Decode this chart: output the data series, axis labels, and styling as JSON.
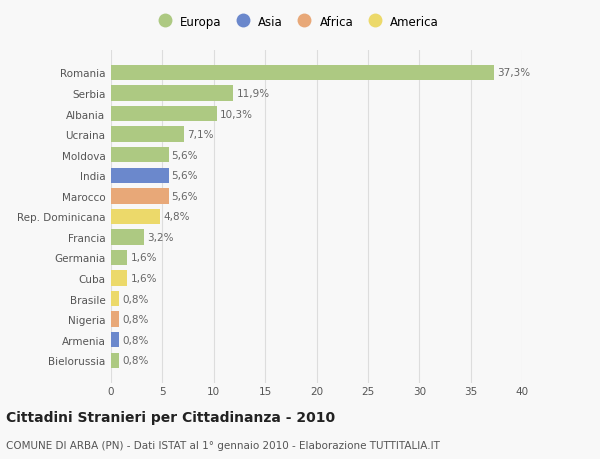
{
  "countries": [
    "Romania",
    "Serbia",
    "Albania",
    "Ucraina",
    "Moldova",
    "India",
    "Marocco",
    "Rep. Dominicana",
    "Francia",
    "Germania",
    "Cuba",
    "Brasile",
    "Nigeria",
    "Armenia",
    "Bielorussia"
  ],
  "values": [
    37.3,
    11.9,
    10.3,
    7.1,
    5.6,
    5.6,
    5.6,
    4.8,
    3.2,
    1.6,
    1.6,
    0.8,
    0.8,
    0.8,
    0.8
  ],
  "labels": [
    "37,3%",
    "11,9%",
    "10,3%",
    "7,1%",
    "5,6%",
    "5,6%",
    "5,6%",
    "4,8%",
    "3,2%",
    "1,6%",
    "1,6%",
    "0,8%",
    "0,8%",
    "0,8%",
    "0,8%"
  ],
  "continents": [
    "Europa",
    "Europa",
    "Europa",
    "Europa",
    "Europa",
    "Asia",
    "Africa",
    "America",
    "Europa",
    "Europa",
    "America",
    "America",
    "Africa",
    "Asia",
    "Europa"
  ],
  "colors": {
    "Europa": "#adc982",
    "Asia": "#6b88cc",
    "Africa": "#e8a878",
    "America": "#ecd96a"
  },
  "title": "Cittadini Stranieri per Cittadinanza - 2010",
  "subtitle": "COMUNE DI ARBA (PN) - Dati ISTAT al 1° gennaio 2010 - Elaborazione TUTTITALIA.IT",
  "xlim": [
    0,
    40
  ],
  "xticks": [
    0,
    5,
    10,
    15,
    20,
    25,
    30,
    35,
    40
  ],
  "background_color": "#f8f8f8",
  "grid_color": "#dddddd",
  "bar_height": 0.75,
  "title_fontsize": 10,
  "subtitle_fontsize": 7.5,
  "tick_fontsize": 7.5,
  "label_fontsize": 7.5,
  "legend_fontsize": 8.5
}
